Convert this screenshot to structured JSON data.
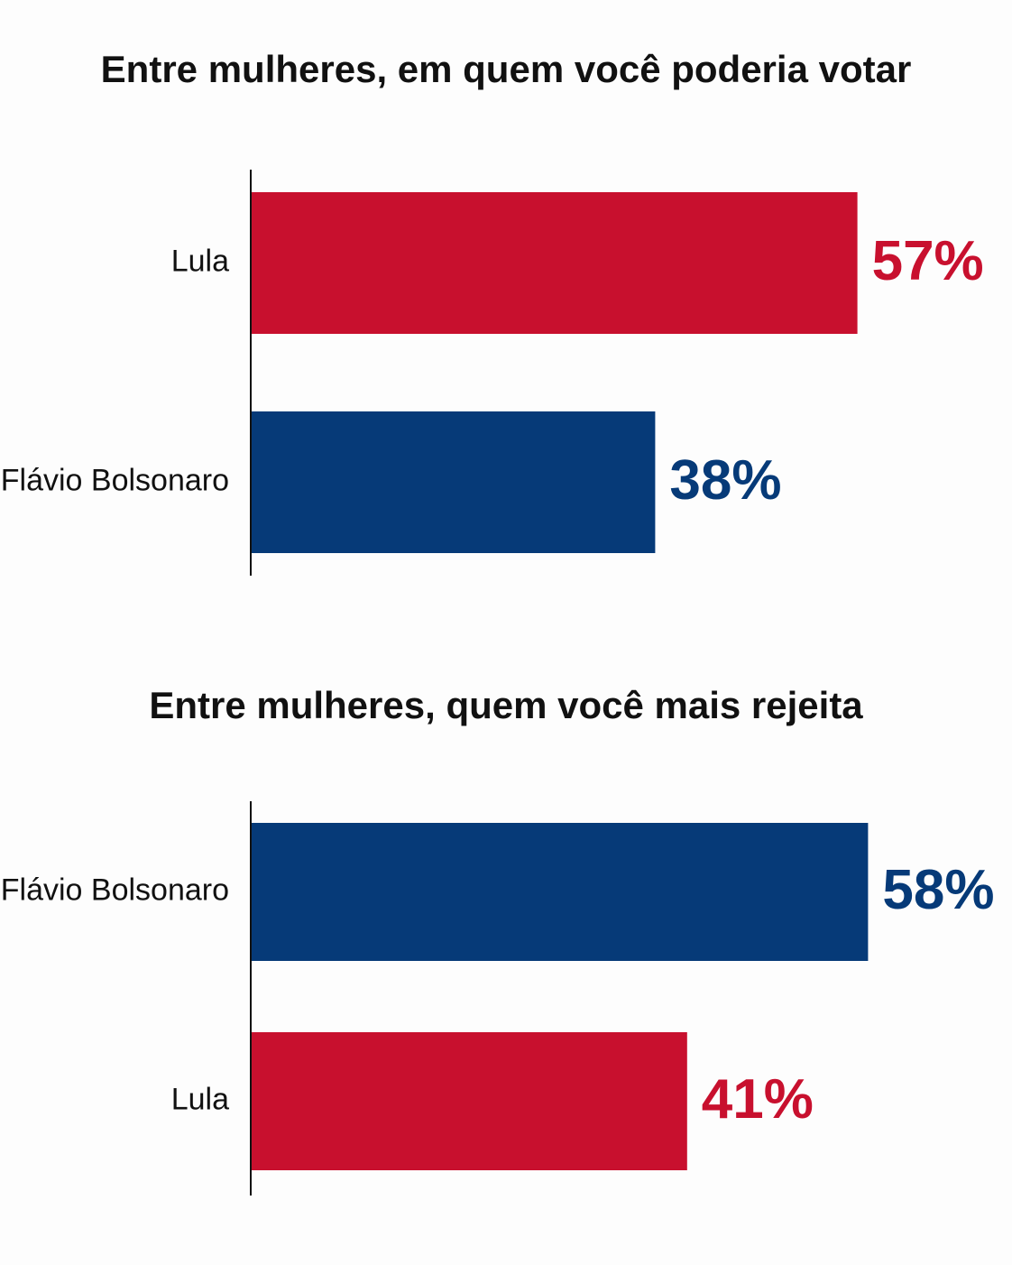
{
  "chart_data": [
    {
      "type": "bar",
      "orientation": "horizontal",
      "title": "Entre mulheres, em quem você poderia votar",
      "categories": [
        "Lula",
        "Flávio Bolsonaro"
      ],
      "values": [
        57,
        38
      ],
      "value_labels": [
        "57%",
        "38%"
      ],
      "colors": [
        "#c8102e",
        "#063a78"
      ],
      "xlim": [
        0,
        70
      ]
    },
    {
      "type": "bar",
      "orientation": "horizontal",
      "title": "Entre mulheres, quem você mais rejeita",
      "categories": [
        "Flávio Bolsonaro",
        "Lula"
      ],
      "values": [
        58,
        41
      ],
      "value_labels": [
        "58%",
        "41%"
      ],
      "colors": [
        "#063a78",
        "#c8102e"
      ],
      "xlim": [
        0,
        70
      ]
    }
  ]
}
